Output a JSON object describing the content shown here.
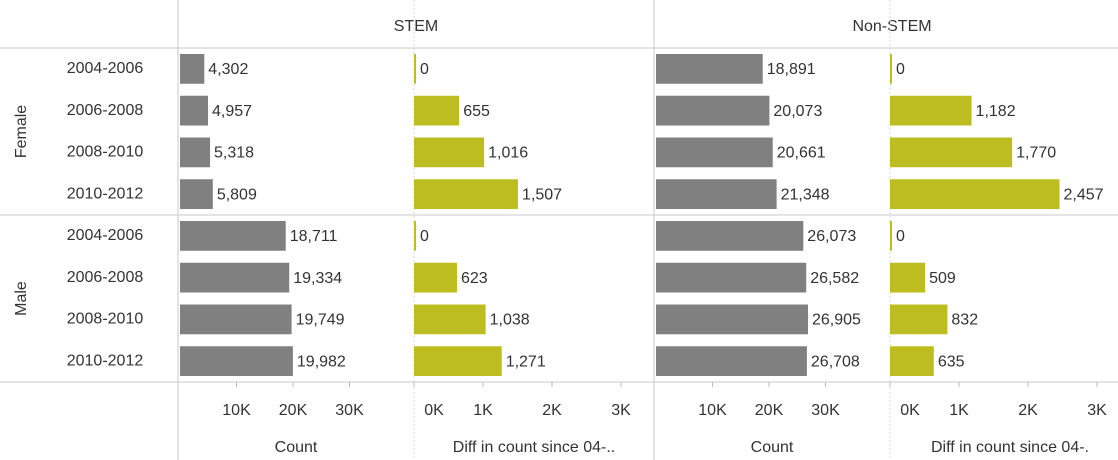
{
  "chart_data": {
    "type": "bar",
    "row_groups": [
      "Female",
      "Male"
    ],
    "categories": [
      "2004-2006",
      "2006-2008",
      "2008-2010",
      "2010-2012"
    ],
    "columns": [
      {
        "name": "STEM",
        "panels": [
          {
            "axis_title": "Count",
            "color": "#808080",
            "xlim": [
              0,
              40000
            ],
            "xticks": [
              {
                "value": 10000,
                "label": "10K"
              },
              {
                "value": 20000,
                "label": "20K"
              },
              {
                "value": 30000,
                "label": "30K"
              }
            ],
            "values": [
              [
                4302,
                4957,
                5318,
                5809
              ],
              [
                18711,
                19334,
                19749,
                19982
              ]
            ],
            "value_labels": [
              [
                "4,302",
                "4,957",
                "5,318",
                "5,809"
              ],
              [
                "18,711",
                "19,334",
                "19,749",
                "19,982"
              ]
            ]
          },
          {
            "axis_title": "Diff in count since 04-..",
            "color": "#bdbd22",
            "xlim": [
              0,
              3400
            ],
            "xticks": [
              {
                "value": 0,
                "label": "0K"
              },
              {
                "value": 1000,
                "label": "1K"
              },
              {
                "value": 2000,
                "label": "2K"
              },
              {
                "value": 3000,
                "label": "3K"
              }
            ],
            "values": [
              [
                0,
                655,
                1016,
                1507
              ],
              [
                0,
                623,
                1038,
                1271
              ]
            ],
            "value_labels": [
              [
                "0",
                "655",
                "1,016",
                "1,507"
              ],
              [
                "0",
                "623",
                "1,038",
                "1,271"
              ]
            ]
          }
        ]
      },
      {
        "name": "Non-STEM",
        "panels": [
          {
            "axis_title": "Count",
            "color": "#808080",
            "xlim": [
              0,
              40000
            ],
            "xticks": [
              {
                "value": 10000,
                "label": "10K"
              },
              {
                "value": 20000,
                "label": "20K"
              },
              {
                "value": 30000,
                "label": "30K"
              }
            ],
            "values": [
              [
                18891,
                20073,
                20661,
                21348
              ],
              [
                26073,
                26582,
                26905,
                26708
              ]
            ],
            "value_labels": [
              [
                "18,891",
                "20,073",
                "20,661",
                "21,348"
              ],
              [
                "26,073",
                "26,582",
                "26,905",
                "26,708"
              ]
            ]
          },
          {
            "axis_title": "Diff in count since 04-.",
            "color": "#bdbd22",
            "xlim": [
              0,
              3400
            ],
            "xticks": [
              {
                "value": 0,
                "label": "0K"
              },
              {
                "value": 1000,
                "label": "1K"
              },
              {
                "value": 2000,
                "label": "2K"
              },
              {
                "value": 3000,
                "label": "3K"
              }
            ],
            "values": [
              [
                0,
                1182,
                1770,
                2457
              ],
              [
                0,
                509,
                832,
                635
              ]
            ],
            "value_labels": [
              [
                "0",
                "1,182",
                "1,770",
                "2,457"
              ],
              [
                "0",
                "509",
                "832",
                "635"
              ]
            ]
          }
        ]
      }
    ]
  }
}
